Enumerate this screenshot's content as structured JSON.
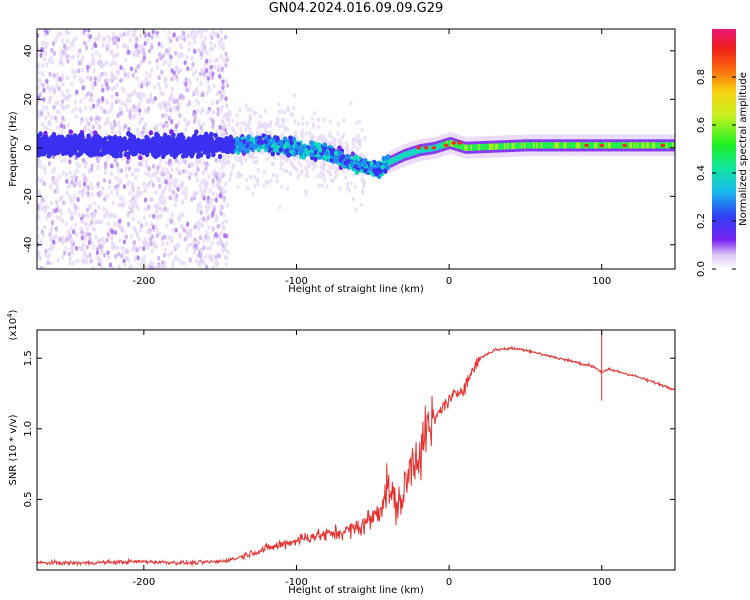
{
  "title": "GN04.2024.016.09.09.G29",
  "chart_data": [
    {
      "type": "heatmap",
      "xlabel": "Height of straight line (km)",
      "ylabel": "Frequency (Hz)",
      "xlim": [
        -270,
        148
      ],
      "ylim": [
        -50,
        49
      ],
      "xticks": [
        -200,
        -100,
        0,
        100
      ],
      "yticks": [
        -40,
        -20,
        0,
        20,
        40
      ],
      "colorbar": {
        "label": "Normalized spectral amplitude",
        "range": [
          0.0,
          1.0
        ],
        "ticks": [
          0.0,
          0.2,
          0.4,
          0.6,
          0.8
        ]
      },
      "ridge": {
        "x": [
          -270,
          -200,
          -150,
          -120,
          -100,
          -80,
          -60,
          -45,
          -40,
          -30,
          -20,
          -10,
          -5,
          0,
          10,
          50,
          100,
          148
        ],
        "frequency": [
          1,
          1,
          1,
          2,
          0,
          -2,
          -7,
          -9,
          -6,
          -3,
          -1,
          0,
          1,
          2,
          0,
          1,
          1,
          1
        ]
      }
    },
    {
      "type": "line",
      "xlabel": "Height of straight line (km)",
      "ylabel": "SNR (10 * v/v)",
      "y_scale_label": "(x10",
      "y_scale_exp": "4",
      "xlim": [
        -270,
        148
      ],
      "ylim": [
        0,
        17000
      ],
      "xticks": [
        -200,
        -100,
        0,
        100
      ],
      "yticks": [
        5000,
        10000,
        15000
      ],
      "ytick_labels": [
        "0.5",
        "1.0",
        "1.5"
      ],
      "series": [
        {
          "color": "#e8302e",
          "x": [
            -270,
            -240,
            -200,
            -170,
            -150,
            -140,
            -130,
            -120,
            -110,
            -100,
            -90,
            -80,
            -70,
            -60,
            -50,
            -45,
            -40,
            -35,
            -30,
            -25,
            -20,
            -15,
            -10,
            -5,
            0,
            10,
            20,
            30,
            40,
            50,
            60,
            80,
            95,
            100,
            105,
            120,
            148
          ],
          "y": [
            500,
            500,
            600,
            500,
            600,
            800,
            1200,
            1500,
            1800,
            2100,
            2400,
            2500,
            2700,
            3000,
            3700,
            4500,
            6000,
            4500,
            5200,
            7500,
            8500,
            9500,
            10500,
            11500,
            12000,
            13000,
            15000,
            15600,
            15700,
            15600,
            15300,
            14800,
            14400,
            14000,
            14200,
            13800,
            12800
          ]
        }
      ],
      "annotations": [
        {
          "x": 100,
          "y": 17000,
          "note": "spike"
        },
        {
          "x": 100,
          "y": 12000,
          "note": "dip"
        }
      ]
    }
  ]
}
